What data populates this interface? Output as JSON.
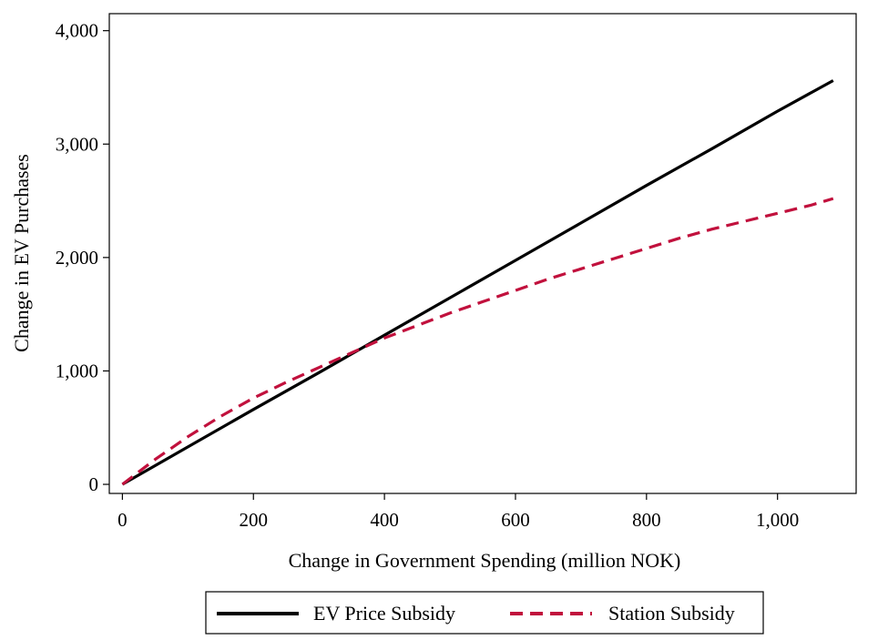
{
  "chart_data": {
    "type": "line",
    "title": "",
    "xlabel": "Change in Government Spending (million NOK)",
    "ylabel": "Change in EV Purchases",
    "xlim": [
      -20,
      1120
    ],
    "ylim": [
      -80,
      4150
    ],
    "xticks": [
      0,
      200,
      400,
      600,
      800,
      1000
    ],
    "xtick_labels": [
      "0",
      "200",
      "400",
      "600",
      "800",
      "1,000"
    ],
    "yticks": [
      0,
      1000,
      2000,
      3000,
      4000
    ],
    "ytick_labels": [
      "0",
      "1,000",
      "2,000",
      "3,000",
      "4,000"
    ],
    "grid": false,
    "legend_position": "bottom",
    "series": [
      {
        "name": "EV Price Subsidy",
        "color": "#000000",
        "style": "solid",
        "x": [
          0,
          100,
          200,
          300,
          400,
          500,
          600,
          700,
          800,
          900,
          1000,
          1085
        ],
        "y": [
          0,
          330,
          660,
          985,
          1315,
          1645,
          1975,
          2305,
          2635,
          2960,
          3290,
          3560
        ]
      },
      {
        "name": "Station Subsidy",
        "color": "#C1113D",
        "style": "dashed",
        "x": [
          0,
          50,
          100,
          150,
          200,
          250,
          300,
          350,
          400,
          450,
          500,
          550,
          600,
          650,
          700,
          750,
          800,
          850,
          900,
          950,
          1000,
          1050,
          1085
        ],
        "y": [
          0,
          220,
          420,
          600,
          760,
          900,
          1030,
          1160,
          1290,
          1400,
          1510,
          1610,
          1710,
          1810,
          1900,
          1990,
          2080,
          2170,
          2250,
          2320,
          2390,
          2460,
          2520
        ]
      }
    ]
  }
}
